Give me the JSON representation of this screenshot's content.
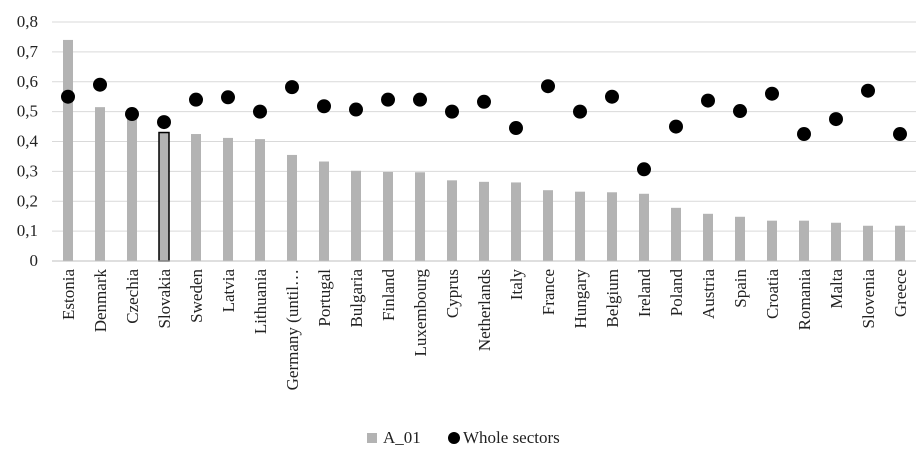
{
  "chart_data": {
    "type": "bar",
    "title": "",
    "xlabel": "",
    "ylabel": "",
    "ylim": [
      0,
      0.8
    ],
    "yticks": [
      "0",
      "0,1",
      "0,2",
      "0,3",
      "0,4",
      "0,5",
      "0,6",
      "0,7",
      "0,8"
    ],
    "grid": true,
    "legend_position": "bottom",
    "categories": [
      "Estonia",
      "Denmark",
      "Czechia",
      "Slovakia",
      "Sweden",
      "Latvia",
      "Lithuania",
      "Germany (until…",
      "Portugal",
      "Bulgaria",
      "Finland",
      "Luxembourg",
      "Cyprus",
      "Netherlands",
      "Italy",
      "France",
      "Hungary",
      "Belgium",
      "Ireland",
      "Poland",
      "Austria",
      "Spain",
      "Croatia",
      "Romania",
      "Malta",
      "Slovenia",
      "Greece"
    ],
    "highlighted_category": "Slovakia",
    "series": [
      {
        "name": "A_01",
        "kind": "bar",
        "color": "#b3b3b3",
        "values": [
          0.74,
          0.515,
          0.495,
          0.43,
          0.425,
          0.412,
          0.408,
          0.355,
          0.333,
          0.302,
          0.298,
          0.297,
          0.27,
          0.265,
          0.263,
          0.237,
          0.232,
          0.23,
          0.225,
          0.178,
          0.158,
          0.148,
          0.135,
          0.135,
          0.128,
          0.118,
          0.118
        ]
      },
      {
        "name": "Whole sectors",
        "kind": "scatter",
        "color": "#000000",
        "values": [
          0.55,
          0.59,
          0.492,
          0.465,
          0.54,
          0.548,
          0.5,
          0.582,
          0.518,
          0.507,
          0.54,
          0.54,
          0.5,
          0.533,
          0.445,
          0.585,
          0.5,
          0.55,
          0.307,
          0.45,
          0.537,
          0.502,
          0.56,
          0.425,
          0.475,
          0.57,
          0.425
        ]
      }
    ]
  }
}
